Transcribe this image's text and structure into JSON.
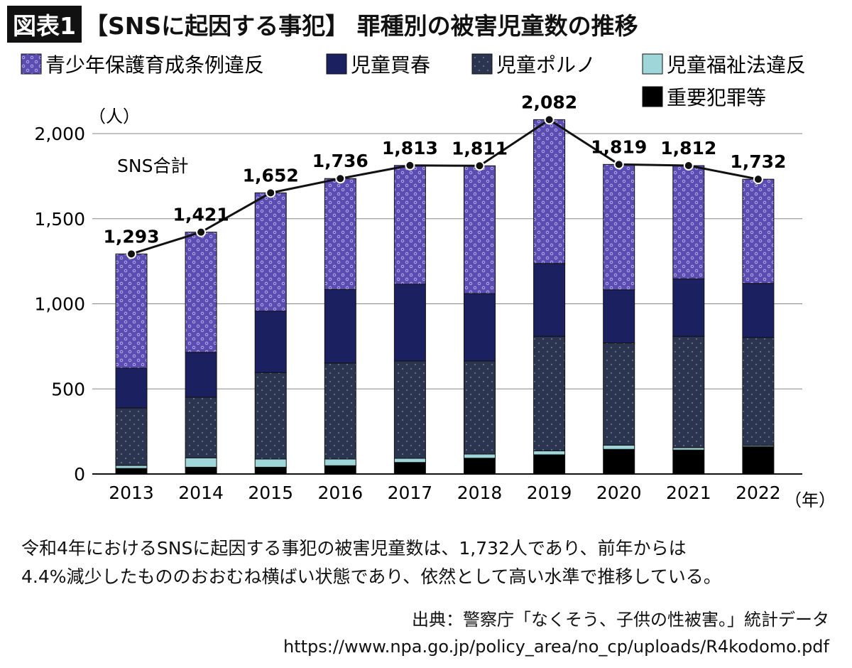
{
  "title": {
    "badge": "図表1",
    "text": "【SNSに起因する事犯】 罪種別の被害児童数の推移"
  },
  "chart_data": {
    "type": "bar",
    "stacked": true,
    "categories": [
      "2013",
      "2014",
      "2015",
      "2016",
      "2017",
      "2018",
      "2019",
      "2020",
      "2021",
      "2022"
    ],
    "series": [
      {
        "name": "重要犯罪等",
        "color": "#000000",
        "values": [
          33,
          40,
          40,
          49,
          68,
          93,
          113,
          145,
          141,
          160
        ]
      },
      {
        "name": "児童福祉法違反",
        "color": "#9fd6da",
        "values": [
          17,
          55,
          48,
          39,
          24,
          24,
          23,
          24,
          14,
          7
        ]
      },
      {
        "name": "児童ポルノ",
        "color": "#2b3550",
        "values": [
          338,
          356,
          508,
          564,
          572,
          547,
          673,
          601,
          654,
          635
        ]
      },
      {
        "name": "児童買春",
        "color": "#1a2060",
        "values": [
          234,
          264,
          361,
          432,
          451,
          396,
          428,
          312,
          338,
          318
        ]
      },
      {
        "name": "青少年保護育成条例違反",
        "color": "#5a4cb2",
        "values": [
          671,
          706,
          695,
          652,
          698,
          751,
          845,
          737,
          665,
          612
        ]
      }
    ],
    "line": {
      "name": "SNS合計",
      "values": [
        1293,
        1421,
        1652,
        1736,
        1813,
        1811,
        2082,
        1819,
        1812,
        1732
      ],
      "labels": [
        "1,293",
        "1,421",
        "1,652",
        "1,736",
        "1,813",
        "1,811",
        "2,082",
        "1,819",
        "1,812",
        "1,732"
      ]
    },
    "yticks": [
      0,
      500,
      1000,
      1500,
      2000
    ],
    "ytick_labels": [
      "0",
      "500",
      "1,000",
      "1,500",
      "2,000"
    ],
    "ylim": [
      0,
      2000
    ],
    "ylabel": "（人）",
    "xlabel": "（年）",
    "grid": true,
    "legend_position": "top",
    "legend_order": [
      "青少年保護育成条例違反",
      "児童買春",
      "児童ポルノ",
      "児童福祉法違反",
      "重要犯罪等"
    ]
  },
  "notes": {
    "line1": "令和4年におけるSNSに起因する事犯の被害児童数は、1,732人であり、前年からは",
    "line2": "4.4%減少したもののおおむね横ばい状態であり、依然として高い水準で推移している。"
  },
  "source": {
    "line1": "出典：警察庁「なくそう、子供の性被害。」統計データ",
    "line2": "https://www.npa.go.jp/policy_area/no_cp/uploads/R4kodomo.pdf"
  }
}
